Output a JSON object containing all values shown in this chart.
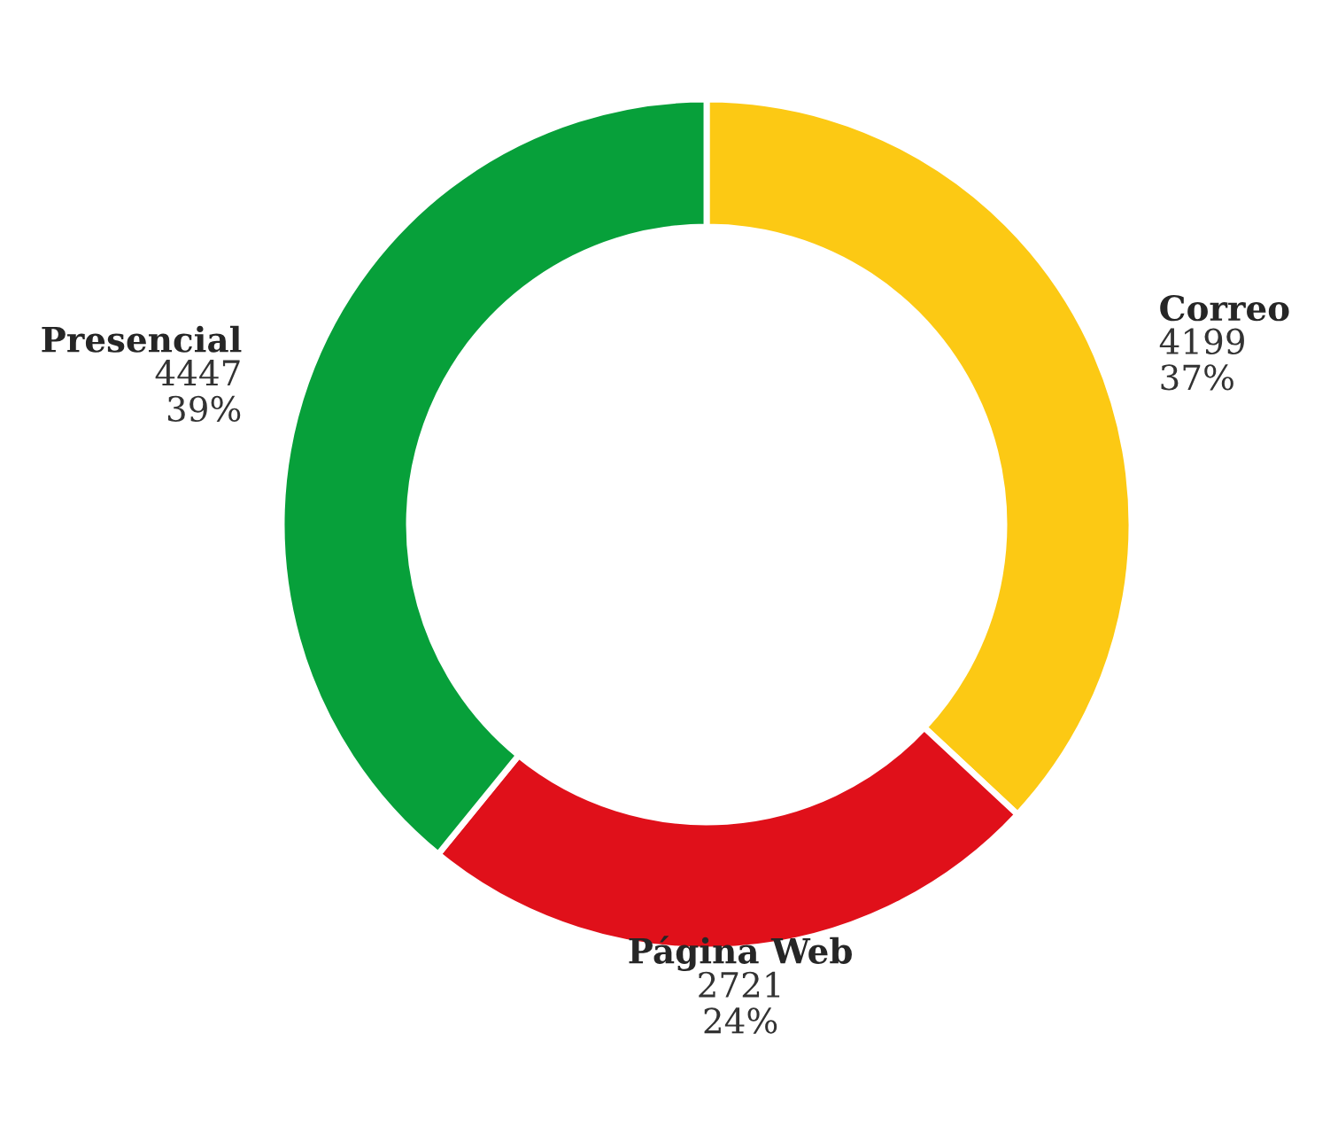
{
  "chart_data": {
    "type": "donut",
    "categories": [
      "Correo",
      "Página Web",
      "Presencial"
    ],
    "values": [
      4199,
      2721,
      4447
    ],
    "colors": [
      "#fcc914",
      "#e0101a",
      "#07a03a"
    ],
    "value_labels": [
      "4199\n37%",
      "2721\n24%",
      "4447\n39%"
    ],
    "legend": false
  }
}
